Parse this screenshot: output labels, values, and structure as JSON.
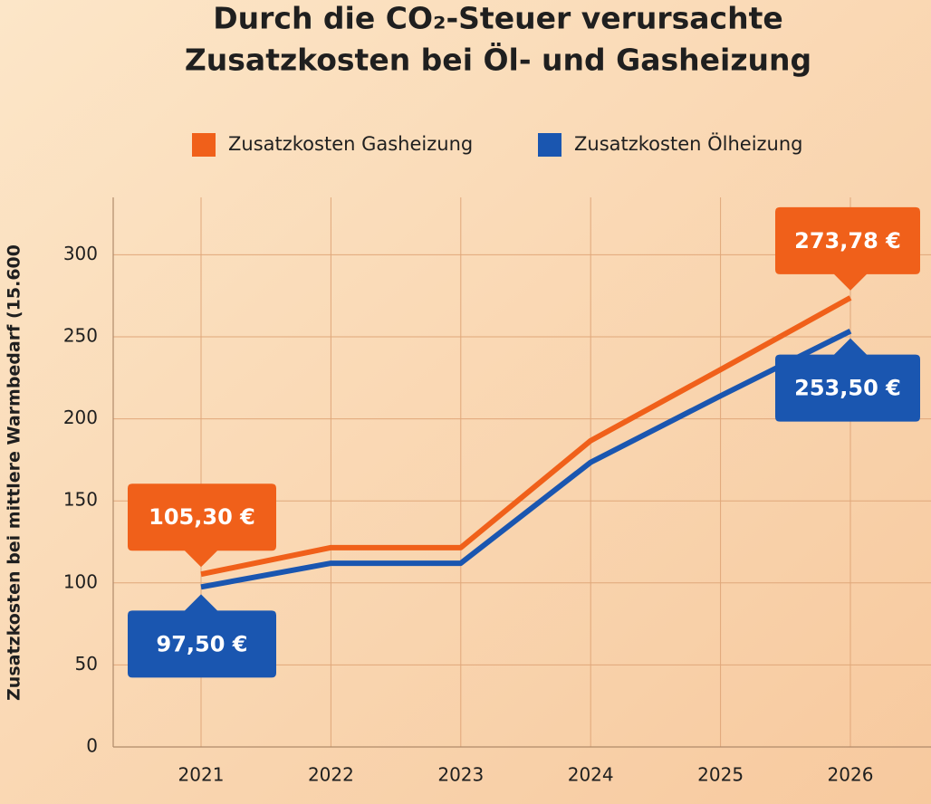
{
  "chart_data": {
    "type": "line",
    "title": [
      "Durch die CO₂-Steuer verursachte",
      "Zusatzkosten bei Öl- und Gasheizung"
    ],
    "y_label": "Zusatzkosten bei mittlere Warmbedarf (15.600",
    "categories": [
      "2021",
      "2022",
      "2023",
      "2024",
      "2025",
      "2026"
    ],
    "series": [
      {
        "name": "Zusatzkosten Gasheizung",
        "color": "#f0601a",
        "values": [
          105.3,
          121.5,
          121.5,
          186.7,
          230,
          273.78
        ],
        "value_labels": [
          "105,30 €",
          null,
          null,
          null,
          null,
          "273,78 €"
        ]
      },
      {
        "name": "Zusatzkosten Ölheizung",
        "color": "#1a56b0",
        "values": [
          97.5,
          112,
          112,
          173.5,
          214,
          253.5
        ],
        "value_labels": [
          "97,50 €",
          null,
          null,
          null,
          null,
          "253,50 €"
        ]
      }
    ],
    "ylim": [
      0,
      335
    ],
    "yticks": [
      0,
      50,
      100,
      150,
      200,
      250,
      300
    ],
    "grid": true
  }
}
